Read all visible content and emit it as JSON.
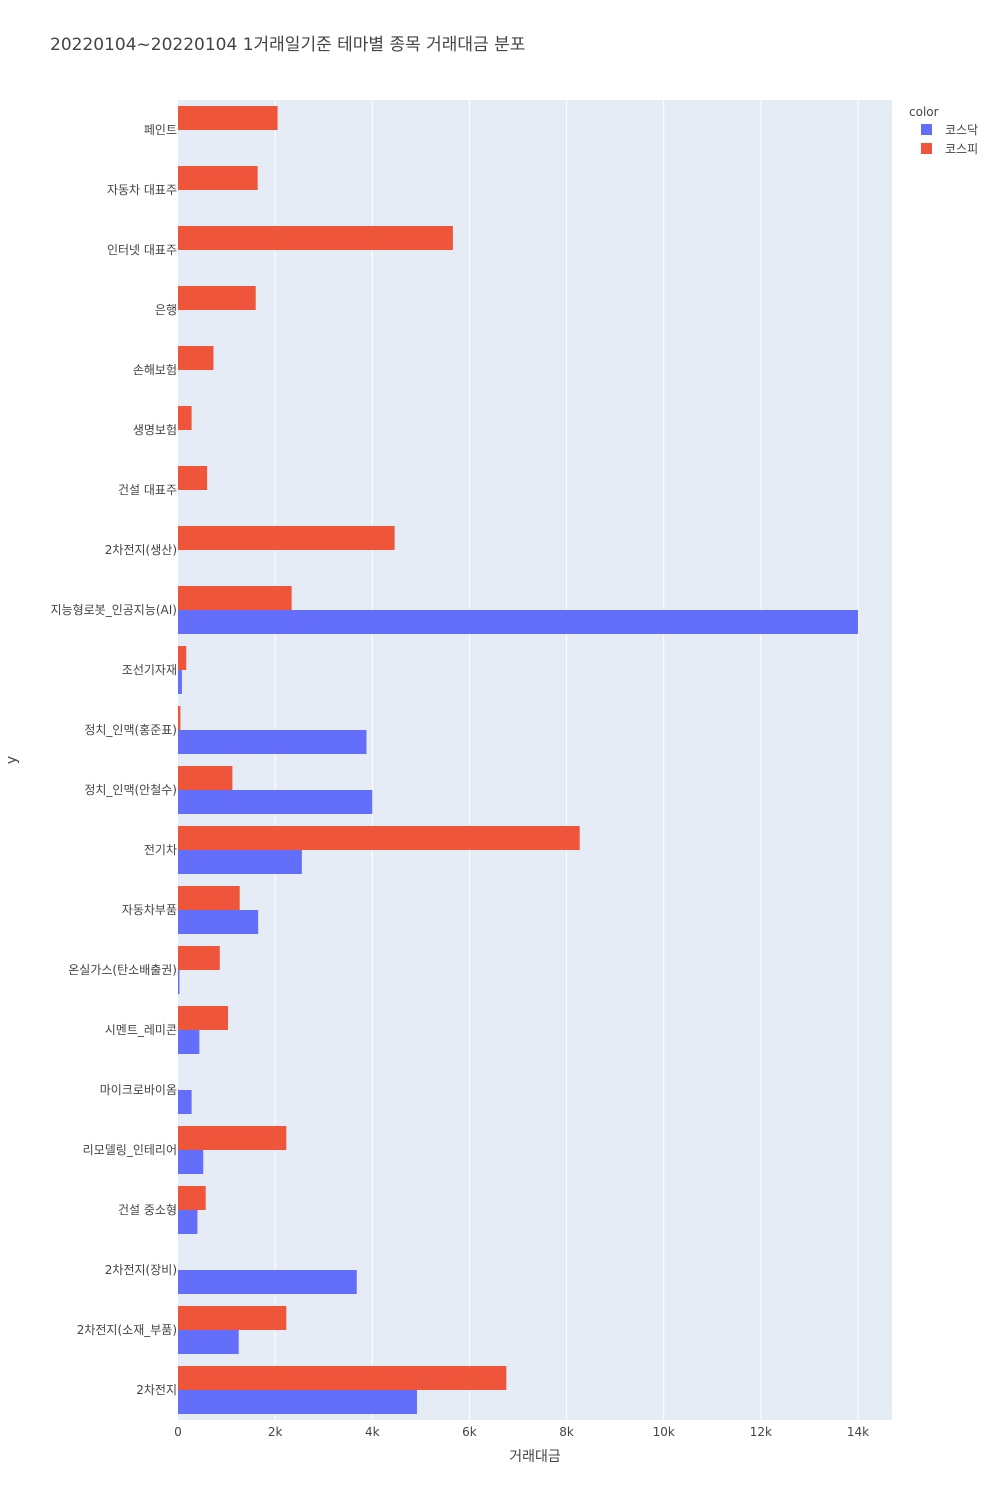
{
  "chart_data": {
    "type": "bar",
    "orientation": "horizontal",
    "title": "20220104~20220104 1거래일기준 테마별 종목 거래대금 분포",
    "xlabel": "거래대금",
    "ylabel": "y",
    "xlim": [
      0,
      14700
    ],
    "x_ticks": [
      {
        "value": 0,
        "label": "0"
      },
      {
        "value": 2000,
        "label": "2k"
      },
      {
        "value": 4000,
        "label": "4k"
      },
      {
        "value": 6000,
        "label": "6k"
      },
      {
        "value": 8000,
        "label": "8k"
      },
      {
        "value": 10000,
        "label": "10k"
      },
      {
        "value": 12000,
        "label": "12k"
      },
      {
        "value": 14000,
        "label": "14k"
      }
    ],
    "grid": true,
    "barmode": "group",
    "legend": {
      "title": "color",
      "position": "top-right"
    },
    "categories": [
      "2차전지",
      "2차전지(소재_부품)",
      "2차전지(장비)",
      "건설 중소형",
      "리모델링_인테리어",
      "마이크로바이옴",
      "시멘트_레미콘",
      "온실가스(탄소배출권)",
      "자동차부품",
      "전기차",
      "정치_인맥(안철수)",
      "정치_인맥(홍준표)",
      "조선기자재",
      "지능형로봇_인공지능(AI)",
      "2차전지(생산)",
      "건설 대표주",
      "생명보험",
      "손해보험",
      "은행",
      "인터넷 대표주",
      "자동차 대표주",
      "페인트"
    ],
    "series": [
      {
        "name": "코스닥",
        "color": "#636efa",
        "values": [
          4920,
          1250,
          3680,
          400,
          520,
          280,
          440,
          30,
          1650,
          2550,
          4000,
          3880,
          80,
          14000,
          0,
          0,
          0,
          0,
          0,
          0,
          0,
          0
        ]
      },
      {
        "name": "코스피",
        "color": "#ef553b",
        "values": [
          6760,
          2230,
          0,
          570,
          2230,
          0,
          1030,
          860,
          1270,
          8270,
          1120,
          50,
          170,
          2340,
          4460,
          600,
          280,
          730,
          1600,
          5660,
          1640,
          2050
        ]
      }
    ]
  }
}
